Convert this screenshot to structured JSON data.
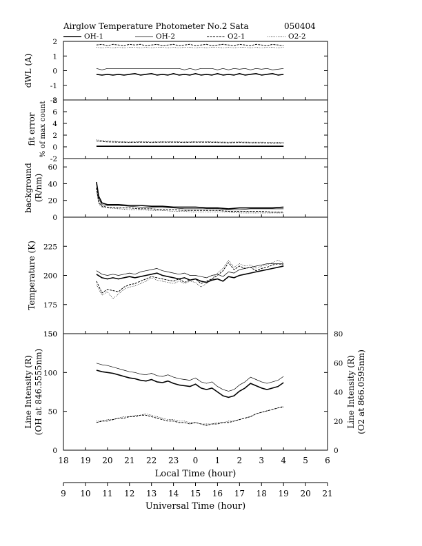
{
  "header": {
    "title": "Airglow Temperature Photometer No.2  Sata",
    "date": "050404"
  },
  "legend": [
    {
      "name": "OH-1",
      "style": "solid-thick"
    },
    {
      "name": "OH-2",
      "style": "solid-thin"
    },
    {
      "name": "O2-1",
      "style": "dashed"
    },
    {
      "name": "O2-2",
      "style": "dotted"
    }
  ],
  "x_axis": {
    "xlabel": "Local Time (hour)",
    "ticks": [
      "18",
      "19",
      "20",
      "21",
      "22",
      "23",
      "0",
      "1",
      "2",
      "3",
      "4",
      "5",
      "6"
    ]
  },
  "x2_axis": {
    "xlabel": "Universal Time (hour)",
    "ticks": [
      "9",
      "10",
      "11",
      "12",
      "13",
      "14",
      "15",
      "16",
      "17",
      "18",
      "19",
      "20",
      "21"
    ]
  },
  "chart_data": [
    {
      "type": "line",
      "ylabel": "dWL (A)",
      "ylim": [
        -2,
        2
      ],
      "yticks": [
        "2",
        "1",
        "0",
        "-1",
        "-2"
      ],
      "x": [
        19.5,
        19.75,
        20,
        20.25,
        20.5,
        20.75,
        21,
        21.25,
        21.5,
        21.75,
        22,
        22.25,
        22.5,
        22.75,
        23,
        23.25,
        23.5,
        23.75,
        24,
        24.25,
        24.5,
        24.75,
        25,
        25.25,
        25.5,
        25.75,
        26,
        26.25,
        26.5,
        26.75,
        27,
        27.25,
        27.5,
        27.75,
        28
      ],
      "series": [
        {
          "name": "OH-1",
          "values": [
            -0.25,
            -0.3,
            -0.25,
            -0.3,
            -0.25,
            -0.3,
            -0.25,
            -0.2,
            -0.3,
            -0.25,
            -0.2,
            -0.3,
            -0.25,
            -0.3,
            -0.2,
            -0.3,
            -0.25,
            -0.3,
            -0.2,
            -0.3,
            -0.25,
            -0.3,
            -0.2,
            -0.3,
            -0.25,
            -0.3,
            -0.2,
            -0.3,
            -0.25,
            -0.2,
            -0.3,
            -0.25,
            -0.2,
            -0.3,
            -0.25
          ]
        },
        {
          "name": "OH-2",
          "values": [
            0.15,
            0.05,
            0.15,
            0.15,
            0.15,
            0.15,
            0.15,
            0.15,
            0.15,
            0.15,
            0.15,
            0.15,
            0.15,
            0.15,
            0.15,
            0.15,
            0.05,
            0.15,
            0.05,
            0.15,
            0.15,
            0.15,
            0.05,
            0.15,
            0.05,
            0.15,
            0.1,
            0.15,
            0.05,
            0.15,
            0.1,
            0.15,
            0.05,
            0.1,
            0.15
          ]
        },
        {
          "name": "O2-1",
          "values": [
            1.75,
            1.8,
            1.7,
            1.8,
            1.75,
            1.7,
            1.8,
            1.75,
            1.8,
            1.7,
            1.75,
            1.8,
            1.7,
            1.75,
            1.8,
            1.7,
            1.75,
            1.8,
            1.7,
            1.75,
            1.8,
            1.7,
            1.75,
            1.8,
            1.75,
            1.7,
            1.8,
            1.75,
            1.7,
            1.8,
            1.75,
            1.7,
            1.8,
            1.75,
            1.7
          ]
        },
        {
          "name": "O2-2",
          "values": [
            1.6,
            1.55,
            1.6,
            1.55,
            1.6,
            1.55,
            1.6,
            1.6,
            1.55,
            1.6,
            1.55,
            1.6,
            1.6,
            1.55,
            1.6,
            1.55,
            1.6,
            1.6,
            1.55,
            1.6,
            1.55,
            1.6,
            1.6,
            1.55,
            1.6,
            1.55,
            1.6,
            1.6,
            1.55,
            1.6,
            1.55,
            1.6,
            1.6,
            1.55,
            1.6
          ]
        }
      ]
    },
    {
      "type": "line",
      "ylabel": "fit error",
      "ylabel2": "% of max count",
      "ylim": [
        -2,
        8
      ],
      "yticks": [
        "8",
        "6",
        "4",
        "2",
        "0",
        "-2"
      ],
      "x": [
        19.5,
        20,
        20.5,
        21,
        21.5,
        22,
        22.5,
        23,
        23.5,
        24,
        24.5,
        25,
        25.5,
        26,
        26.5,
        27,
        27.5,
        28
      ],
      "series": [
        {
          "name": "OH-1",
          "values": [
            0.1,
            0.1,
            0.1,
            0.1,
            0.1,
            0.1,
            0.1,
            0.1,
            0.1,
            0.1,
            0.1,
            0.1,
            0.1,
            0.1,
            0.1,
            0.1,
            0.1,
            0.1
          ]
        },
        {
          "name": "OH-2",
          "values": [
            0.15,
            0.15,
            0.15,
            0.15,
            0.15,
            0.15,
            0.15,
            0.15,
            0.15,
            0.15,
            0.15,
            0.15,
            0.15,
            0.15,
            0.15,
            0.15,
            0.15,
            0.15
          ]
        },
        {
          "name": "O2-1",
          "values": [
            1.0,
            0.85,
            0.8,
            0.75,
            0.8,
            0.75,
            0.8,
            0.8,
            0.75,
            0.8,
            0.8,
            0.75,
            0.7,
            0.75,
            0.7,
            0.7,
            0.65,
            0.65
          ]
        },
        {
          "name": "O2-2",
          "values": [
            1.2,
            1.0,
            0.9,
            0.85,
            0.9,
            0.85,
            0.9,
            0.9,
            0.85,
            0.9,
            0.9,
            0.85,
            0.8,
            0.85,
            0.8,
            0.8,
            0.75,
            0.75
          ]
        }
      ]
    },
    {
      "type": "line",
      "ylabel": "background",
      "ylabel2": "(R/nm)",
      "ylim": [
        0,
        70
      ],
      "yticks": [
        "60",
        "40",
        "20",
        "0"
      ],
      "x": [
        19.5,
        19.6,
        19.75,
        20,
        20.5,
        21,
        21.5,
        22,
        22.5,
        23,
        23.5,
        24,
        24.5,
        25,
        25.5,
        26,
        26.5,
        27,
        27.5,
        28
      ],
      "series": [
        {
          "name": "OH-1",
          "values": [
            42,
            25,
            17,
            15,
            15,
            14,
            14,
            13,
            13,
            12,
            12,
            12,
            11,
            11,
            10,
            11,
            11,
            11,
            11,
            12
          ]
        },
        {
          "name": "OH-2",
          "values": [
            40,
            22,
            15,
            14,
            14,
            13,
            12,
            12,
            11,
            11,
            10,
            10,
            10,
            10,
            9,
            9,
            10,
            10,
            10,
            10
          ]
        },
        {
          "name": "O2-1",
          "values": [
            35,
            18,
            13,
            12,
            11,
            11,
            10,
            10,
            9,
            9,
            8,
            8,
            8,
            8,
            7,
            7,
            7,
            7,
            6,
            6
          ]
        },
        {
          "name": "O2-2",
          "values": [
            33,
            16,
            12,
            11,
            10,
            9,
            9,
            8,
            8,
            7,
            7,
            6,
            6,
            6,
            6,
            5,
            5,
            5,
            5,
            5
          ]
        }
      ]
    },
    {
      "type": "line",
      "ylabel": "Temperature (K)",
      "ylim": [
        150,
        250
      ],
      "yticks": [
        "225",
        "200",
        "175",
        "150"
      ],
      "x": [
        19.5,
        19.75,
        20,
        20.25,
        20.5,
        20.75,
        21,
        21.25,
        21.5,
        21.75,
        22,
        22.25,
        22.5,
        22.75,
        23,
        23.25,
        23.5,
        23.75,
        24,
        24.25,
        24.5,
        24.75,
        25,
        25.25,
        25.5,
        25.75,
        26,
        26.25,
        26.5,
        26.75,
        27,
        27.25,
        27.5,
        27.75,
        28
      ],
      "series": [
        {
          "name": "OH-1",
          "values": [
            201,
            198,
            197,
            198,
            197,
            198,
            199,
            198,
            199,
            200,
            201,
            202,
            200,
            199,
            198,
            197,
            198,
            196,
            197,
            195,
            194,
            196,
            197,
            195,
            199,
            198,
            200,
            201,
            202,
            203,
            204,
            205,
            206,
            207,
            208
          ]
        },
        {
          "name": "OH-2",
          "values": [
            204,
            201,
            200,
            201,
            200,
            201,
            202,
            201,
            203,
            204,
            205,
            206,
            204,
            203,
            202,
            201,
            202,
            200,
            200,
            199,
            198,
            200,
            201,
            199,
            203,
            202,
            205,
            206,
            207,
            208,
            209,
            210,
            210,
            210,
            210
          ]
        },
        {
          "name": "O2-1",
          "values": [
            195,
            185,
            188,
            187,
            186,
            190,
            192,
            193,
            195,
            197,
            199,
            198,
            197,
            196,
            195,
            197,
            194,
            196,
            197,
            193,
            195,
            197,
            200,
            204,
            211,
            205,
            208,
            206,
            207,
            204,
            206,
            207,
            209,
            210,
            209
          ]
        },
        {
          "name": "O2-2",
          "values": [
            192,
            183,
            186,
            180,
            184,
            188,
            190,
            191,
            193,
            195,
            198,
            196,
            195,
            194,
            193,
            195,
            193,
            195,
            194,
            190,
            193,
            197,
            202,
            206,
            213,
            207,
            210,
            208,
            209,
            206,
            208,
            209,
            211,
            213,
            211
          ]
        }
      ]
    },
    {
      "type": "line",
      "ylabel": "Line Intensity (R)",
      "ylabel2": "(OH at 846.5555nm)",
      "ylim": [
        0,
        150
      ],
      "yticks": [
        "150",
        "100",
        "50",
        "0"
      ],
      "right_axis": {
        "ylabel": "Line Intensity (R)",
        "ylabel2": "(O2 at 866.0595nm)",
        "ylim": [
          0,
          80
        ],
        "yticks": [
          "80",
          "60",
          "40",
          "20",
          "0"
        ]
      },
      "x": [
        19.5,
        19.75,
        20,
        20.25,
        20.5,
        20.75,
        21,
        21.25,
        21.5,
        21.75,
        22,
        22.25,
        22.5,
        22.75,
        23,
        23.25,
        23.5,
        23.75,
        24,
        24.25,
        24.5,
        24.75,
        25,
        25.25,
        25.5,
        25.75,
        26,
        26.25,
        26.5,
        26.75,
        27,
        27.25,
        27.5,
        27.75,
        28
      ],
      "series": [
        {
          "name": "OH-1",
          "axis": "left",
          "values": [
            103,
            101,
            100,
            99,
            97,
            95,
            93,
            92,
            90,
            89,
            91,
            88,
            87,
            89,
            86,
            84,
            83,
            82,
            85,
            80,
            78,
            80,
            75,
            70,
            68,
            70,
            76,
            80,
            86,
            83,
            80,
            78,
            80,
            82,
            87
          ]
        },
        {
          "name": "OH-2",
          "axis": "left",
          "values": [
            112,
            110,
            109,
            107,
            105,
            103,
            101,
            100,
            98,
            97,
            99,
            96,
            95,
            97,
            94,
            92,
            91,
            90,
            93,
            88,
            86,
            88,
            82,
            78,
            76,
            78,
            84,
            88,
            94,
            91,
            88,
            86,
            88,
            90,
            95
          ]
        },
        {
          "name": "O2-1",
          "axis": "right",
          "values": [
            19,
            20,
            20,
            21,
            22,
            22,
            23,
            23,
            24,
            24,
            23,
            22,
            21,
            20,
            20,
            19,
            19,
            18,
            19,
            18,
            17,
            18,
            18,
            19,
            19,
            20,
            21,
            22,
            23,
            25,
            26,
            27,
            28,
            29,
            30
          ]
        },
        {
          "name": "O2-2",
          "axis": "right",
          "values": [
            20,
            20,
            21,
            21,
            22,
            23,
            23,
            24,
            24,
            25,
            24,
            23,
            22,
            21,
            21,
            20,
            20,
            19,
            19,
            18,
            18,
            18,
            19,
            19,
            20,
            20,
            21,
            22,
            23,
            25,
            26,
            27,
            28,
            29,
            29
          ]
        }
      ]
    }
  ]
}
